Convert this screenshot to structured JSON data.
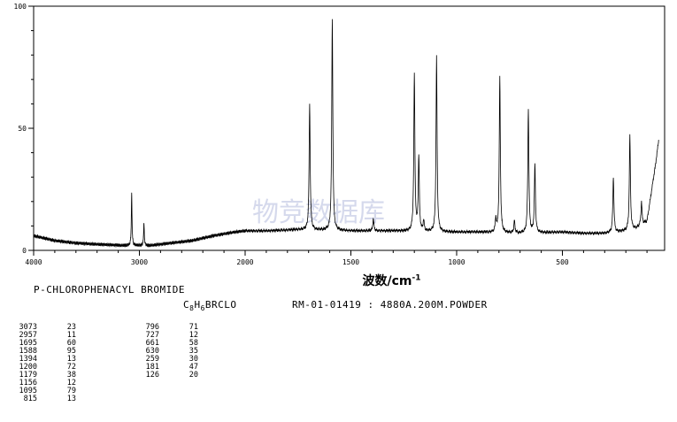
{
  "chart_data": {
    "type": "line",
    "title": "",
    "xlabel": "波数/cm",
    "xlabel_exp": "-1",
    "ylabel": "",
    "xlim": [
      4000,
      40
    ],
    "ylim": [
      0,
      100
    ],
    "x_ticks": [
      "4000",
      "3000",
      "2000",
      "1500",
      "1000",
      "500"
    ],
    "y_ticks": [
      "0",
      "50",
      "100"
    ],
    "grid": false,
    "legend": "none",
    "baseline_points": [
      [
        4000,
        6
      ],
      [
        3800,
        4
      ],
      [
        3600,
        3
      ],
      [
        3400,
        2.5
      ],
      [
        3150,
        2
      ],
      [
        2900,
        2
      ],
      [
        2700,
        3
      ],
      [
        2500,
        4
      ],
      [
        2300,
        6
      ],
      [
        2100,
        7.5
      ],
      [
        2000,
        8
      ],
      [
        1900,
        8
      ],
      [
        1750,
        8.5
      ],
      [
        1500,
        8
      ],
      [
        1300,
        8
      ],
      [
        1100,
        7.5
      ],
      [
        900,
        7.5
      ],
      [
        700,
        7
      ],
      [
        500,
        7.5
      ],
      [
        400,
        7
      ],
      [
        300,
        7
      ],
      [
        200,
        8
      ],
      [
        150,
        9
      ],
      [
        100,
        12
      ],
      [
        60,
        35
      ],
      [
        45,
        45
      ]
    ],
    "series": [
      {
        "values": [
          {
            "x": 3073,
            "y": 23
          },
          {
            "x": 2957,
            "y": 11
          },
          {
            "x": 1695,
            "y": 60
          },
          {
            "x": 1588,
            "y": 95
          },
          {
            "x": 1394,
            "y": 13
          },
          {
            "x": 1200,
            "y": 72
          },
          {
            "x": 1179,
            "y": 38
          },
          {
            "x": 1156,
            "y": 12
          },
          {
            "x": 1095,
            "y": 79
          },
          {
            "x": 815,
            "y": 13
          },
          {
            "x": 796,
            "y": 71
          },
          {
            "x": 727,
            "y": 12
          },
          {
            "x": 661,
            "y": 58
          },
          {
            "x": 630,
            "y": 35
          },
          {
            "x": 259,
            "y": 30
          },
          {
            "x": 181,
            "y": 47
          },
          {
            "x": 126,
            "y": 20
          }
        ]
      }
    ],
    "peak_table": [
      {
        "wn": "3073",
        "int": "23"
      },
      {
        "wn": "2957",
        "int": "11"
      },
      {
        "wn": "1695",
        "int": "60"
      },
      {
        "wn": "1588",
        "int": "95"
      },
      {
        "wn": "1394",
        "int": "13"
      },
      {
        "wn": "1200",
        "int": "72"
      },
      {
        "wn": "1179",
        "int": "38"
      },
      {
        "wn": "1156",
        "int": "12"
      },
      {
        "wn": "1095",
        "int": "79"
      },
      {
        "wn": "815",
        "int": "13"
      },
      {
        "wn": "796",
        "int": "71"
      },
      {
        "wn": "727",
        "int": "12"
      },
      {
        "wn": "661",
        "int": "58"
      },
      {
        "wn": "630",
        "int": "35"
      },
      {
        "wn": "259",
        "int": "30"
      },
      {
        "wn": "181",
        "int": "47"
      },
      {
        "wn": "126",
        "int": "20"
      }
    ]
  },
  "compound_name": "P-CHLOROPHENACYL BROMIDE",
  "formula": {
    "c": "C",
    "c_sub": "8",
    "h": "H",
    "h_sub": "6",
    "rest": "BRCLO"
  },
  "method": "RM-01-01419 : 4880A.200M.POWDER",
  "watermark": "物竞数据库"
}
